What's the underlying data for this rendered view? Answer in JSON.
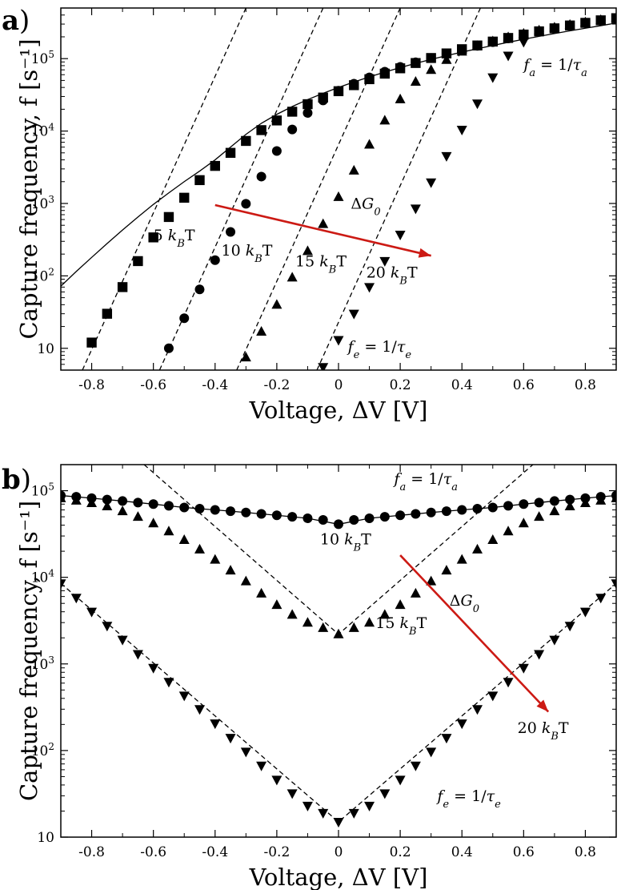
{
  "figure": {
    "panel_a": {
      "label": "a",
      "paren": ")"
    },
    "panel_b": {
      "label": "b",
      "paren": ")"
    }
  },
  "colors": {
    "arrow": "#cc1a14",
    "marker": "#000000",
    "gray_mark": "#aaaaaa"
  },
  "chart_data": [
    {
      "type": "scatter",
      "panel": "a",
      "xlabel": "Voltage, ΔV [V]",
      "ylabel": "Capture frequency, f [s⁻¹]",
      "xlim": [
        -0.9,
        0.9
      ],
      "ylim": [
        5,
        500000
      ],
      "yscale": "log",
      "grid": false,
      "xticks": [
        -0.8,
        -0.6,
        -0.4,
        -0.2,
        0,
        0.2,
        0.4,
        0.6,
        0.8
      ],
      "xtick_labels": [
        "-0.8",
        "-0.6",
        "-0.4",
        "-0.2",
        "0",
        "0.2",
        "0.4",
        "0.6",
        "0.8"
      ],
      "yticks": [
        10,
        100,
        1000,
        10000,
        100000
      ],
      "ytick_labels": [
        {
          "base": "10",
          "exp": ""
        },
        {
          "base": "10",
          "exp": "2"
        },
        {
          "base": "10",
          "exp": "3"
        },
        {
          "base": "10",
          "exp": "4"
        },
        {
          "base": "10",
          "exp": "5"
        }
      ],
      "series": [
        {
          "name": "5 k_B T",
          "label_text": "5 kBT",
          "marker": "square",
          "x": [
            -0.8,
            -0.75,
            -0.7,
            -0.65,
            -0.6,
            -0.55,
            -0.5,
            -0.45,
            -0.4,
            -0.35,
            -0.3,
            -0.25,
            -0.2,
            -0.15,
            -0.1,
            -0.05,
            0,
            0.05,
            0.1,
            0.15,
            0.2,
            0.25,
            0.3,
            0.35,
            0.4,
            0.45,
            0.5,
            0.55,
            0.6,
            0.65,
            0.7,
            0.75,
            0.8,
            0.85,
            0.9
          ],
          "y": [
            12,
            30,
            70,
            160,
            340,
            650,
            1200,
            2100,
            3300,
            5000,
            7300,
            10300,
            14000,
            18500,
            23500,
            29000,
            35500,
            43000,
            52000,
            62000,
            73500,
            87000,
            102000,
            118000,
            135000,
            152000,
            172000,
            193000,
            215000,
            238000,
            262000,
            287000,
            312000,
            338000,
            362000
          ]
        },
        {
          "name": "10 k_B T",
          "label_text": "10 kBT",
          "marker": "circle",
          "x": [
            -0.55,
            -0.5,
            -0.45,
            -0.4,
            -0.35,
            -0.3,
            -0.25,
            -0.2,
            -0.15,
            -0.1,
            -0.05,
            0,
            0.05,
            0.1,
            0.15,
            0.2,
            0.25,
            0.3,
            0.35,
            0.4,
            0.45,
            0.5,
            0.55,
            0.6,
            0.65,
            0.7,
            0.75,
            0.8,
            0.85,
            0.9
          ],
          "y": [
            10,
            26,
            65,
            165,
            405,
            990,
            2350,
            5300,
            10500,
            17800,
            26500,
            36000,
            45000,
            55000,
            66000,
            77000,
            89000,
            102000,
            117000,
            133000,
            150000,
            169000,
            190000,
            212000,
            235000,
            259000,
            284000,
            309000,
            335000,
            360000
          ]
        },
        {
          "name": "15 k_B T",
          "label_text": "15 kBT",
          "marker": "triangle-up",
          "x": [
            -0.3,
            -0.25,
            -0.2,
            -0.15,
            -0.1,
            -0.05,
            0,
            0.05,
            0.1,
            0.15,
            0.2,
            0.25,
            0.3,
            0.35,
            0.4,
            0.45,
            0.5,
            0.55,
            0.6,
            0.65,
            0.7,
            0.75,
            0.8,
            0.85,
            0.9
          ],
          "y": [
            7.5,
            17,
            40,
            95,
            220,
            520,
            1230,
            2850,
            6500,
            14000,
            27500,
            48000,
            70000,
            96000,
            125000,
            150000,
            174000,
            198000,
            222000,
            246000,
            270000,
            294000,
            318000,
            342000,
            365000
          ]
        },
        {
          "name": "20 k_B T",
          "label_text": "20 kBT",
          "marker": "triangle-down",
          "x": [
            -0.05,
            0,
            0.05,
            0.1,
            0.15,
            0.2,
            0.25,
            0.3,
            0.35,
            0.4,
            0.45,
            0.5,
            0.55,
            0.6
          ],
          "y": [
            5.5,
            13,
            30,
            70,
            160,
            370,
            850,
            1950,
            4500,
            10400,
            24000,
            55000,
            110000,
            170000
          ]
        }
      ],
      "limit_curve": {
        "name": "f_a = 1/τ_a",
        "x": [
          -0.9,
          -0.85,
          -0.8,
          -0.75,
          -0.7,
          -0.65,
          -0.6,
          -0.55,
          -0.5,
          -0.45,
          -0.4,
          -0.35,
          -0.3,
          -0.25,
          -0.2,
          -0.15,
          -0.1,
          -0.05,
          0,
          0.05,
          0.1,
          0.15,
          0.2,
          0.25,
          0.3,
          0.35,
          0.4,
          0.45,
          0.5,
          0.55,
          0.6,
          0.65,
          0.7,
          0.75,
          0.8,
          0.85,
          0.9
        ],
        "y": [
          72,
          115,
          180,
          280,
          430,
          650,
          970,
          1400,
          2000,
          2800,
          4000,
          6000,
          9000,
          12800,
          17000,
          21800,
          27200,
          33200,
          40000,
          47600,
          56000,
          65200,
          75200,
          86000,
          97500,
          110000,
          123000,
          137000,
          152000,
          168000,
          185000,
          203000,
          222000,
          242000,
          263000,
          285000,
          310000
        ]
      },
      "emission_lines": [
        {
          "name": "5 k_B T",
          "x": [
            -0.83,
            -0.3
          ],
          "y": [
            5,
            500000
          ]
        },
        {
          "name": "10 k_B T",
          "x": [
            -0.58,
            -0.05
          ],
          "y": [
            5,
            500000
          ]
        },
        {
          "name": "15 k_B T",
          "x": [
            -0.33,
            0.2
          ],
          "y": [
            5,
            500000
          ]
        },
        {
          "name": "20 k_B T",
          "x": [
            -0.07,
            0.46
          ],
          "y": [
            5,
            500000
          ]
        }
      ],
      "annotations": {
        "fa": {
          "text": "fa = 1/τa",
          "x": 0.6,
          "y": 70000
        },
        "fe": {
          "text": "fe = 1/τe",
          "x": 0.03,
          "y": 9
        },
        "dg": {
          "text": "ΔG0",
          "x": 0.04,
          "y": 850
        },
        "labels": [
          {
            "text": "5 kBT",
            "x": -0.6,
            "y": 310
          },
          {
            "text": "10 kBT",
            "x": -0.38,
            "y": 190
          },
          {
            "text": "15 kBT",
            "x": -0.14,
            "y": 135
          },
          {
            "text": "20 kBT",
            "x": 0.09,
            "y": 95
          }
        ],
        "arrow": {
          "x1": -0.4,
          "y1": 950,
          "x2": 0.3,
          "y2": 190
        }
      }
    },
    {
      "type": "scatter",
      "panel": "b",
      "xlabel": "Voltage, ΔV [V]",
      "ylabel": "Capture frequency, f [s⁻¹]",
      "xlim": [
        -0.9,
        0.9
      ],
      "ylim": [
        10,
        200000
      ],
      "yscale": "log",
      "grid": false,
      "xticks": [
        -0.8,
        -0.6,
        -0.4,
        -0.2,
        0,
        0.2,
        0.4,
        0.6,
        0.8
      ],
      "xtick_labels": [
        "-0.8",
        "-0.6",
        "-0.4",
        "-0.2",
        "0",
        "0.2",
        "0.4",
        "0.6",
        "0.8"
      ],
      "yticks": [
        10,
        100,
        1000,
        10000,
        100000
      ],
      "ytick_labels": [
        {
          "base": "10",
          "exp": ""
        },
        {
          "base": "10",
          "exp": "2"
        },
        {
          "base": "10",
          "exp": "3"
        },
        {
          "base": "10",
          "exp": "4"
        },
        {
          "base": "10",
          "exp": "5"
        }
      ],
      "series": [
        {
          "name": "10 k_B T",
          "label_text": "10 kBT",
          "marker": "circle",
          "x": [
            -0.9,
            -0.85,
            -0.8,
            -0.75,
            -0.7,
            -0.65,
            -0.6,
            -0.55,
            -0.5,
            -0.45,
            -0.4,
            -0.35,
            -0.3,
            -0.25,
            -0.2,
            -0.15,
            -0.1,
            -0.05,
            0,
            0.05,
            0.1,
            0.15,
            0.2,
            0.25,
            0.3,
            0.35,
            0.4,
            0.45,
            0.5,
            0.55,
            0.6,
            0.65,
            0.7,
            0.75,
            0.8,
            0.85,
            0.9
          ],
          "y": [
            88000,
            85000,
            82000,
            79000,
            76000,
            73000,
            70000,
            67000,
            64000,
            62000,
            60000,
            58000,
            56000,
            54000,
            52000,
            50000,
            48000,
            46000,
            41000,
            46000,
            48000,
            50000,
            52000,
            54000,
            56000,
            58000,
            60000,
            62000,
            64000,
            67000,
            70000,
            73000,
            76000,
            79000,
            82000,
            85000,
            88000
          ]
        },
        {
          "name": "15 k_B T",
          "label_text": "15 kBT",
          "marker": "triangle-up",
          "x": [
            -0.9,
            -0.85,
            -0.8,
            -0.75,
            -0.7,
            -0.65,
            -0.6,
            -0.55,
            -0.5,
            -0.45,
            -0.4,
            -0.35,
            -0.3,
            -0.25,
            -0.2,
            -0.15,
            -0.1,
            -0.05,
            0,
            0.05,
            0.1,
            0.15,
            0.2,
            0.25,
            0.3,
            0.35,
            0.4,
            0.45,
            0.5,
            0.55,
            0.6,
            0.65,
            0.7,
            0.75,
            0.8,
            0.85,
            0.9
          ],
          "y": [
            82000,
            77000,
            72000,
            66000,
            58000,
            50000,
            42000,
            34000,
            27000,
            21000,
            16000,
            12000,
            9000,
            6500,
            4800,
            3700,
            3000,
            2600,
            2200,
            2600,
            3000,
            3700,
            4800,
            6500,
            9000,
            12000,
            16000,
            21000,
            27000,
            34000,
            42000,
            50000,
            58000,
            66000,
            72000,
            77000,
            82000
          ]
        },
        {
          "name": "20 k_B T",
          "label_text": "20 kBT",
          "marker": "triangle-down",
          "x": [
            -0.9,
            -0.85,
            -0.8,
            -0.75,
            -0.7,
            -0.65,
            -0.6,
            -0.55,
            -0.5,
            -0.45,
            -0.4,
            -0.35,
            -0.3,
            -0.25,
            -0.2,
            -0.15,
            -0.1,
            -0.05,
            0,
            0.05,
            0.1,
            0.15,
            0.2,
            0.25,
            0.3,
            0.35,
            0.4,
            0.45,
            0.5,
            0.55,
            0.6,
            0.65,
            0.7,
            0.75,
            0.8,
            0.85,
            0.9
          ],
          "y": [
            8500,
            5800,
            4000,
            2750,
            1900,
            1300,
            900,
            620,
            430,
            300,
            205,
            140,
            97,
            67,
            46,
            32,
            23,
            19,
            15,
            19,
            23,
            32,
            46,
            67,
            97,
            140,
            205,
            300,
            430,
            620,
            900,
            1300,
            1900,
            2750,
            4000,
            5800,
            8500
          ]
        }
      ],
      "limit_curve": {
        "name": "f_a = 1/τ_a",
        "x": [
          -0.9,
          -0.8,
          -0.7,
          -0.6,
          -0.5,
          -0.4,
          -0.3,
          -0.2,
          -0.1,
          0,
          0.1,
          0.2,
          0.3,
          0.4,
          0.5,
          0.6,
          0.7,
          0.8,
          0.9
        ],
        "y": [
          88000,
          82000,
          76000,
          70000,
          64000,
          60000,
          56000,
          52000,
          48000,
          41000,
          48000,
          52000,
          56000,
          60000,
          64000,
          70000,
          76000,
          82000,
          88000
        ]
      },
      "emission_lines": [
        {
          "name": "15 k_B T",
          "x": [
            -0.63,
            0,
            0.63
          ],
          "y": [
            200000,
            2200,
            200000
          ]
        },
        {
          "name": "20 k_B T",
          "x": [
            -0.9,
            0,
            0.9
          ],
          "y": [
            8500,
            15,
            8500
          ]
        }
      ],
      "annotations": {
        "fa": {
          "text": "fa = 1/τa",
          "x": 0.18,
          "y": 120000
        },
        "fe": {
          "text": "fe = 1/τe",
          "x": 0.32,
          "y": 26
        },
        "dg": {
          "text": "ΔG0",
          "x": 0.36,
          "y": 4700
        },
        "labels": [
          {
            "text": "10 kBT",
            "x": -0.06,
            "y": 24000
          },
          {
            "text": "15 kBT",
            "x": 0.12,
            "y": 2600
          },
          {
            "text": "20 kBT",
            "x": 0.58,
            "y": 160
          }
        ],
        "arrow": {
          "x1": 0.2,
          "y1": 18000,
          "x2": 0.68,
          "y2": 280
        }
      }
    }
  ]
}
